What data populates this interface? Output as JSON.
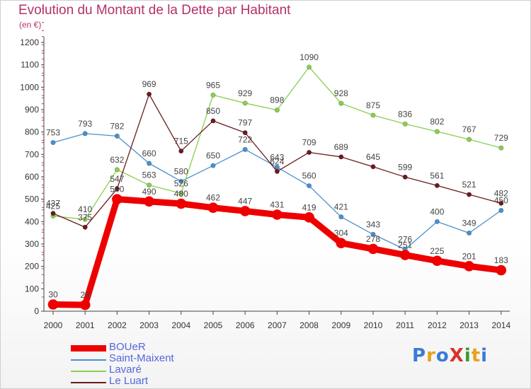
{
  "title": "Evolution du Montant de la Dette par Habitant",
  "subtitle": "(en €)",
  "logo": {
    "text": "ProXiti",
    "letter_colors": [
      "#3a7bd5",
      "#e8a21a",
      "#3a7bd5",
      "#d8322a",
      "#3a9a3a",
      "#e8a21a",
      "#3a7bd5"
    ]
  },
  "chart_data": {
    "type": "line",
    "title": "Evolution du Montant de la Dette par Habitant",
    "subtitle": "(en €)",
    "x": [
      "2000",
      "2001",
      "2002",
      "2003",
      "2004",
      "2005",
      "2006",
      "2007",
      "2008",
      "2009",
      "2010",
      "2011",
      "2012",
      "2013",
      "2014"
    ],
    "ylim": [
      0,
      1200
    ],
    "yticks": [
      0,
      100,
      200,
      300,
      400,
      500,
      600,
      700,
      800,
      900,
      1000,
      1100,
      1200
    ],
    "grid": false,
    "legend_position": "bottom-left",
    "series": [
      {
        "name": "BOUeR",
        "color": "#ee0000",
        "emphasis": true,
        "values": [
          30,
          28,
          500,
          490,
          480,
          462,
          447,
          431,
          419,
          304,
          278,
          251,
          225,
          201,
          183
        ],
        "labels": [
          "30",
          "28",
          "500",
          "490",
          "480",
          "462",
          "447",
          "431",
          "419",
          "304",
          "278",
          "251",
          "225",
          "201",
          "183"
        ]
      },
      {
        "name": "Saint-Maixent",
        "color": "#4a90d0",
        "values": [
          753,
          793,
          782,
          660,
          580,
          650,
          722,
          643,
          560,
          421,
          343,
          276,
          400,
          349,
          450
        ],
        "labels": [
          "753",
          "793",
          "782",
          "660",
          "580",
          "650",
          "722",
          "643",
          "560",
          "421",
          "343",
          "276",
          "400",
          "349",
          "450"
        ]
      },
      {
        "name": "Lavaré",
        "color": "#88d050",
        "values": [
          425,
          410,
          632,
          563,
          526,
          965,
          929,
          898,
          1090,
          928,
          875,
          836,
          802,
          767,
          729
        ],
        "labels": [
          "425",
          "410",
          "632",
          "563",
          "526",
          "965",
          "929",
          "898",
          "1090",
          "928",
          "875",
          "836",
          "802",
          "767",
          "729"
        ]
      },
      {
        "name": "Le Luart",
        "color": "#6b1c1c",
        "values": [
          437,
          375,
          547,
          969,
          715,
          850,
          797,
          624,
          709,
          689,
          645,
          599,
          561,
          521,
          482
        ],
        "labels": [
          "437",
          "375",
          "547",
          "969",
          "715",
          "850",
          "797",
          "624",
          "709",
          "689",
          "645",
          "599",
          "561",
          "521",
          "482"
        ]
      }
    ]
  }
}
